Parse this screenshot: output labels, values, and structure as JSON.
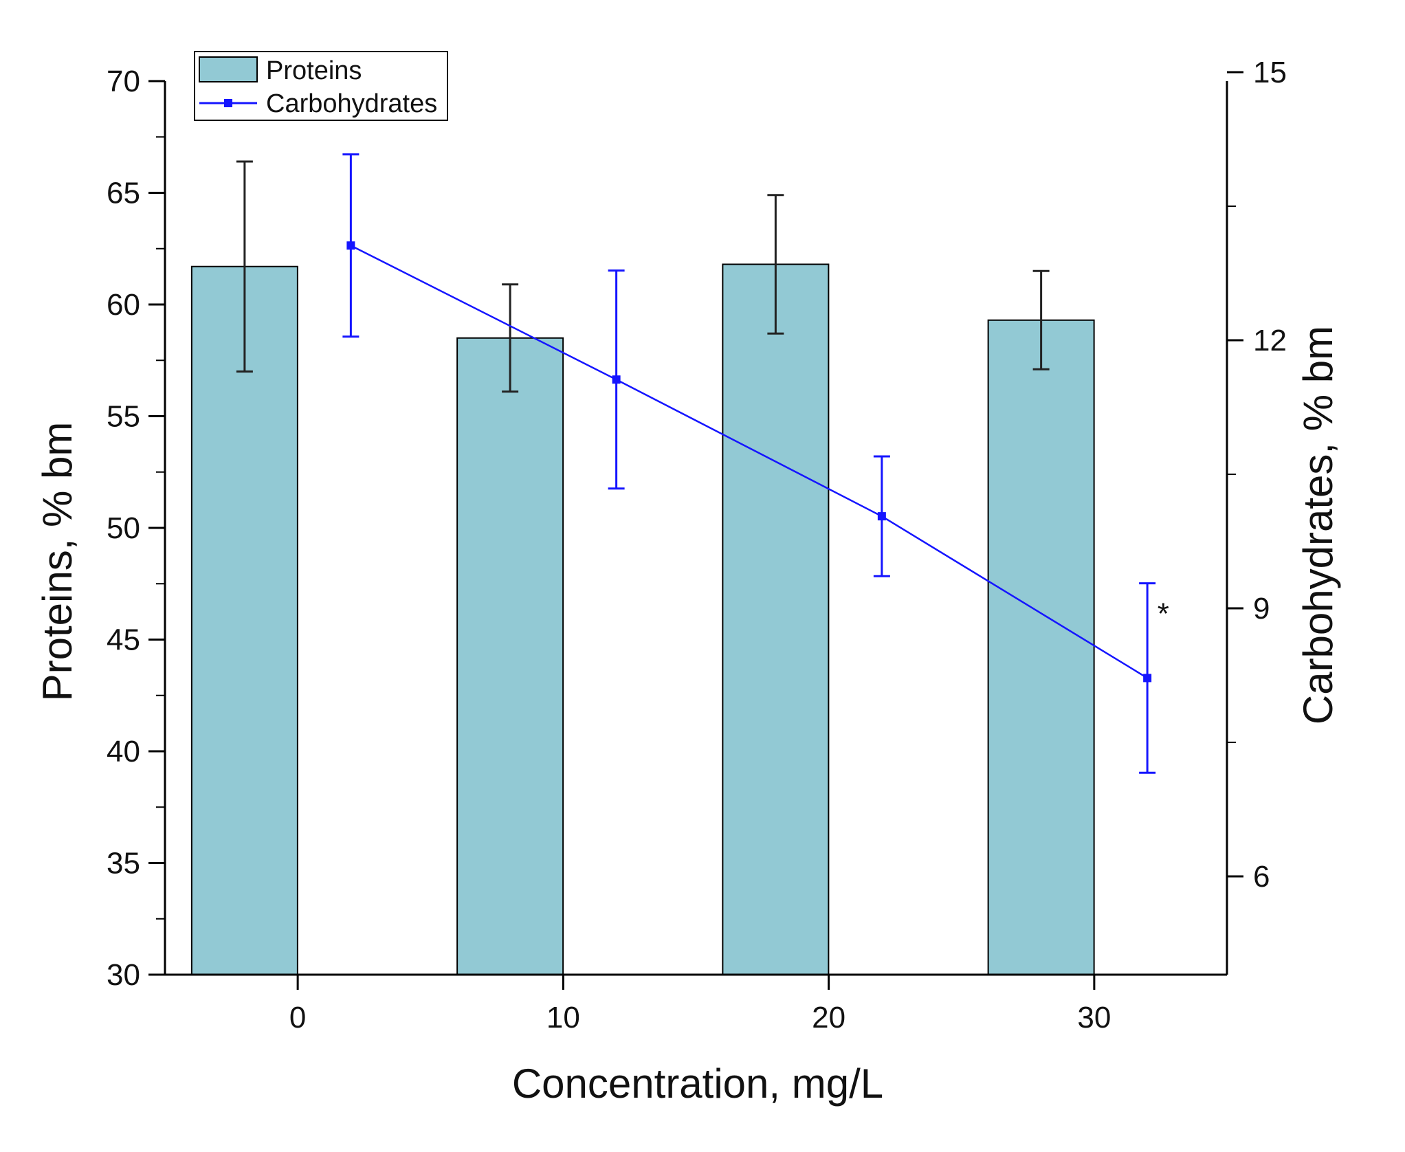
{
  "chart_data": {
    "type": "bar",
    "xlabel": "Concentration, mg/L",
    "ylabel_left": "Proteins,  % bm",
    "ylabel_right": "Carbohydrates,  % bm",
    "x_ticks": [
      "0",
      "10",
      "20",
      "30"
    ],
    "x_domain": [
      -5,
      35
    ],
    "y_left": {
      "range": [
        30,
        70
      ],
      "ticks": [
        "30",
        "35",
        "40",
        "45",
        "50",
        "55",
        "60",
        "65",
        "70"
      ]
    },
    "y_right": {
      "range": [
        4.9,
        14.9
      ],
      "ticks": [
        "6",
        "9",
        "12",
        "15"
      ],
      "tick_values": [
        6,
        9,
        12,
        15
      ]
    },
    "legend": {
      "placement": "top-left",
      "entries": [
        "Proteins",
        "Carbohydrates"
      ]
    },
    "series": [
      {
        "name": "Proteins",
        "type": "bar",
        "axis": "left",
        "color": "#92c9d4",
        "x": [
          -2,
          8,
          18,
          28
        ],
        "values": [
          61.7,
          58.5,
          61.8,
          59.3
        ],
        "error": [
          4.7,
          2.4,
          3.1,
          2.2
        ]
      },
      {
        "name": "Carbohydrates",
        "type": "line",
        "axis": "right",
        "color": "#1515ff",
        "x": [
          2,
          12,
          22,
          32
        ],
        "values": [
          13.06,
          11.56,
          10.03,
          8.22
        ],
        "error": [
          1.02,
          1.22,
          0.67,
          1.06
        ]
      }
    ],
    "annotations": [
      {
        "text": "*",
        "x": 32.6,
        "y": 8.95,
        "axis": "right"
      }
    ],
    "grid": false
  }
}
